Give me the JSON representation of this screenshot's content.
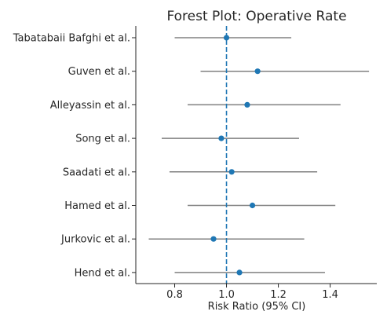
{
  "chart_data": {
    "type": "scatter",
    "title": "Forest Plot: Operative Rate",
    "xlabel": "Risk Ratio (95% CI)",
    "ylabel": "",
    "xlim": [
      0.65,
      1.58
    ],
    "xticks": [
      0.8,
      1.0,
      1.2,
      1.4
    ],
    "xtick_labels": [
      "0.8",
      "1.0",
      "1.2",
      "1.4"
    ],
    "reference_line": 1.0,
    "grid": false,
    "studies": [
      {
        "label": "Tabatabaii Bafghi et al.",
        "rr": 1.0,
        "ci_low": 0.8,
        "ci_high": 1.25
      },
      {
        "label": "Guven et al.",
        "rr": 1.12,
        "ci_low": 0.9,
        "ci_high": 1.55
      },
      {
        "label": "Alleyassin et al.",
        "rr": 1.08,
        "ci_low": 0.85,
        "ci_high": 1.44
      },
      {
        "label": "Song et al.",
        "rr": 0.98,
        "ci_low": 0.75,
        "ci_high": 1.28
      },
      {
        "label": "Saadati et al.",
        "rr": 1.02,
        "ci_low": 0.78,
        "ci_high": 1.35
      },
      {
        "label": "Hamed et al.",
        "rr": 1.1,
        "ci_low": 0.85,
        "ci_high": 1.42
      },
      {
        "label": "Jurkovic et al.",
        "rr": 0.95,
        "ci_low": 0.7,
        "ci_high": 1.3
      },
      {
        "label": "Hend et al.",
        "rr": 1.05,
        "ci_low": 0.8,
        "ci_high": 1.38
      }
    ],
    "colors": {
      "point": "#1f77b4",
      "ci_line": "#808080",
      "reference": "#1f77b4",
      "axis": "#262626"
    }
  }
}
